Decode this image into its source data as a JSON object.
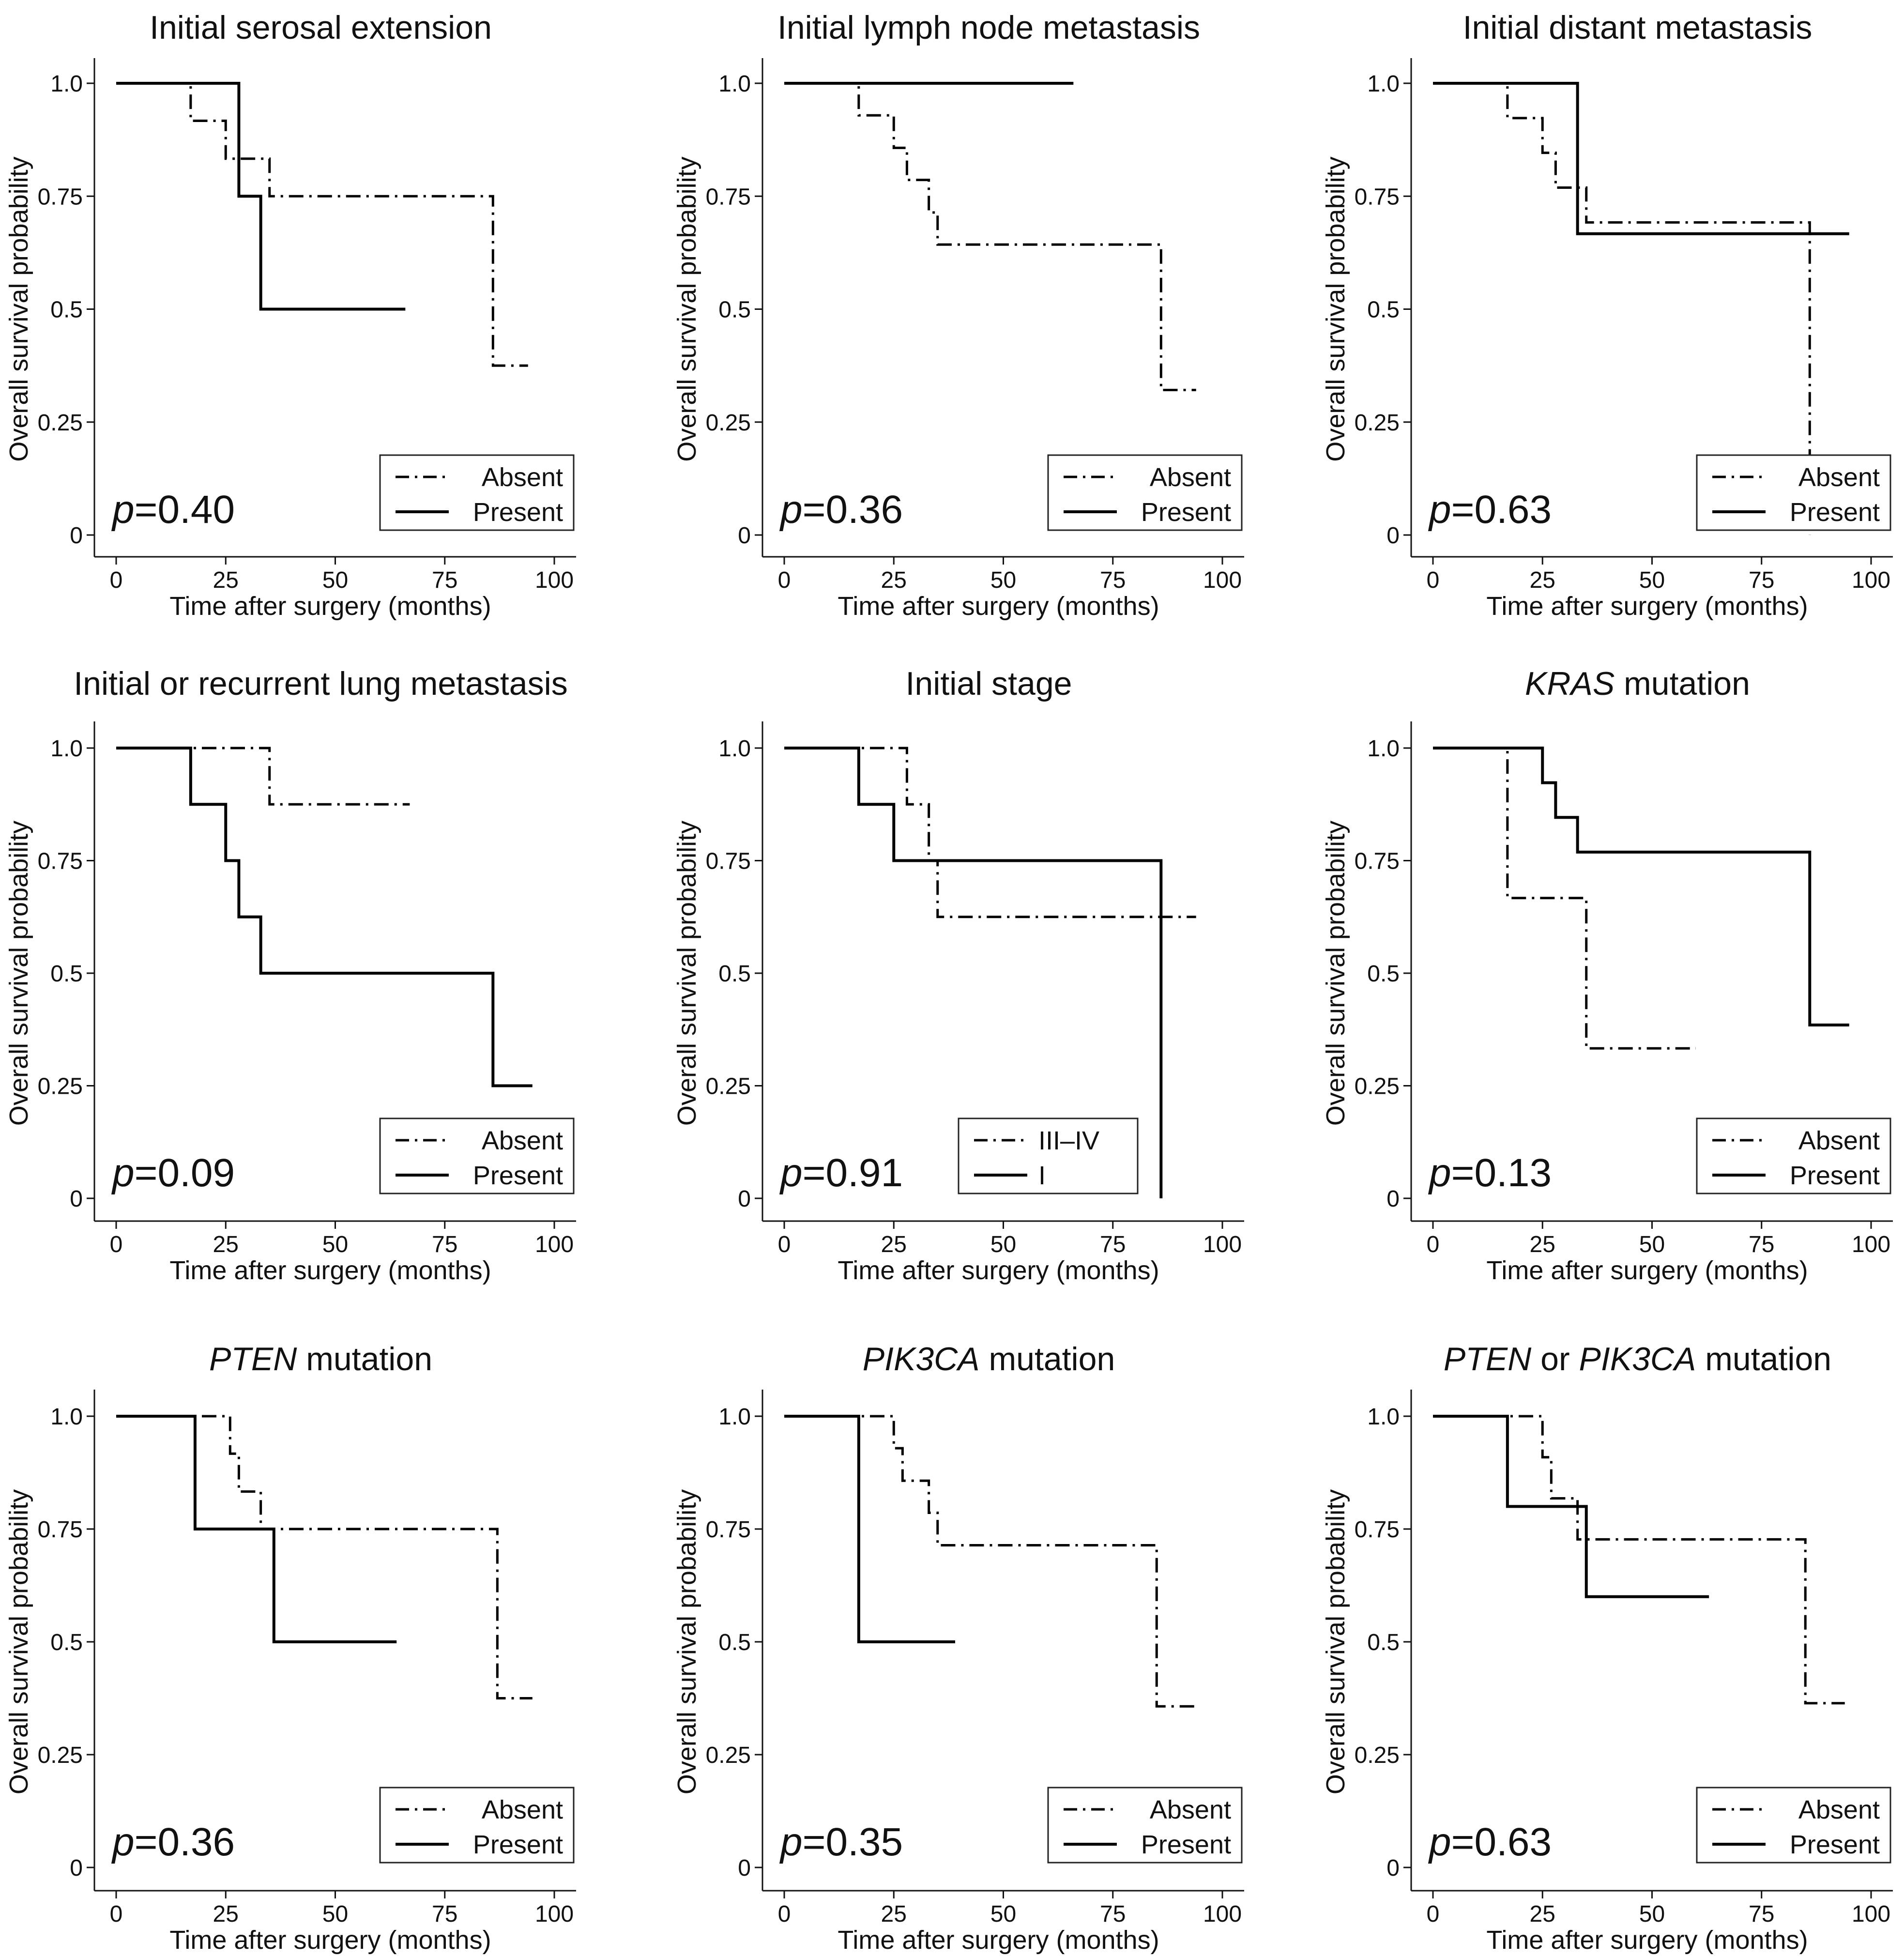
{
  "figure": {
    "x_axis_label": "Time after surgery (months)",
    "y_axis_label": "Overall survival probability"
  },
  "chart_data": [
    {
      "type": "line",
      "title_parts": [
        {
          "text": "Initial serosal extension",
          "italic": false
        }
      ],
      "xlabel": "Time after surgery (months)",
      "ylabel": "Overall survival probability",
      "xlim": [
        0,
        100
      ],
      "ylim": [
        0,
        1
      ],
      "xticks": [
        0,
        25,
        50,
        75,
        100
      ],
      "yticks": [
        0,
        0.25,
        0.5,
        0.75,
        1.0
      ],
      "ytick_labels": [
        "0",
        "0.25",
        "0.5",
        "0.75",
        "1.0"
      ],
      "p_label": "p",
      "p_value": "=0.40",
      "legend_position": "bottom-right",
      "series": [
        {
          "name": "Absent",
          "style": "dashdot",
          "x": [
            0,
            17,
            25,
            35,
            86,
            94
          ],
          "y": [
            1.0,
            0.917,
            0.833,
            0.75,
            0.375,
            0.375
          ]
        },
        {
          "name": "Present",
          "style": "solid",
          "x": [
            0,
            28,
            33,
            66
          ],
          "y": [
            1.0,
            0.75,
            0.5,
            0.5
          ]
        }
      ]
    },
    {
      "type": "line",
      "title_parts": [
        {
          "text": "Initial lymph node metastasis",
          "italic": false
        }
      ],
      "xlabel": "Time after surgery (months)",
      "ylabel": "Overall survival probability",
      "xlim": [
        0,
        100
      ],
      "ylim": [
        0,
        1
      ],
      "xticks": [
        0,
        25,
        50,
        75,
        100
      ],
      "yticks": [
        0,
        0.25,
        0.5,
        0.75,
        1.0
      ],
      "ytick_labels": [
        "0",
        "0.25",
        "0.5",
        "0.75",
        "1.0"
      ],
      "p_label": "p",
      "p_value": "=0.36",
      "legend_position": "bottom-right",
      "series": [
        {
          "name": "Absent",
          "style": "dashdot",
          "x": [
            0,
            17,
            25,
            28,
            33,
            35,
            86,
            94
          ],
          "y": [
            1.0,
            0.929,
            0.857,
            0.786,
            0.714,
            0.643,
            0.321,
            0.321
          ]
        },
        {
          "name": "Present",
          "style": "solid",
          "x": [
            0,
            66
          ],
          "y": [
            1.0,
            1.0
          ]
        }
      ]
    },
    {
      "type": "line",
      "title_parts": [
        {
          "text": "Initial distant metastasis",
          "italic": false
        }
      ],
      "xlabel": "Time after surgery (months)",
      "ylabel": "Overall survival probability",
      "xlim": [
        0,
        100
      ],
      "ylim": [
        0,
        1
      ],
      "xticks": [
        0,
        25,
        50,
        75,
        100
      ],
      "yticks": [
        0,
        0.25,
        0.5,
        0.75,
        1.0
      ],
      "ytick_labels": [
        "0",
        "0.25",
        "0.5",
        "0.75",
        "1.0"
      ],
      "p_label": "p",
      "p_value": "=0.63",
      "legend_position": "bottom-right",
      "series": [
        {
          "name": "Absent",
          "style": "dashdot",
          "x": [
            0,
            17,
            25,
            28,
            35,
            86,
            86
          ],
          "y": [
            1.0,
            0.923,
            0.846,
            0.769,
            0.692,
            0.0,
            0.0
          ]
        },
        {
          "name": "Present",
          "style": "solid",
          "x": [
            0,
            33,
            95
          ],
          "y": [
            1.0,
            0.667,
            0.667
          ]
        }
      ]
    },
    {
      "type": "line",
      "title_parts": [
        {
          "text": "Initial or recurrent lung metastasis",
          "italic": false
        }
      ],
      "xlabel": "Time after surgery (months)",
      "ylabel": "Overall survival probability",
      "xlim": [
        0,
        100
      ],
      "ylim": [
        0,
        1
      ],
      "xticks": [
        0,
        25,
        50,
        75,
        100
      ],
      "yticks": [
        0,
        0.25,
        0.5,
        0.75,
        1.0
      ],
      "ytick_labels": [
        "0",
        "0.25",
        "0.5",
        "0.75",
        "1.0"
      ],
      "p_label": "p",
      "p_value": "=0.09",
      "legend_position": "bottom-right",
      "series": [
        {
          "name": "Absent",
          "style": "dashdot",
          "x": [
            0,
            35,
            67
          ],
          "y": [
            1.0,
            0.875,
            0.875
          ]
        },
        {
          "name": "Present",
          "style": "solid",
          "x": [
            0,
            17,
            25,
            28,
            33,
            86,
            95
          ],
          "y": [
            1.0,
            0.875,
            0.75,
            0.625,
            0.5,
            0.25,
            0.25
          ]
        }
      ]
    },
    {
      "type": "line",
      "title_parts": [
        {
          "text": "Initial stage",
          "italic": false
        }
      ],
      "xlabel": "Time after surgery (months)",
      "ylabel": "Overall survival probability",
      "xlim": [
        0,
        100
      ],
      "ylim": [
        0,
        1
      ],
      "xticks": [
        0,
        25,
        50,
        75,
        100
      ],
      "yticks": [
        0,
        0.25,
        0.5,
        0.75,
        1.0
      ],
      "ytick_labels": [
        "0",
        "0.25",
        "0.5",
        "0.75",
        "1.0"
      ],
      "p_label": "p",
      "p_value": "=0.91",
      "legend_position": "bottom-center",
      "series": [
        {
          "name": "III–IV",
          "style": "dashdot",
          "x": [
            0,
            28,
            33,
            35,
            94
          ],
          "y": [
            1.0,
            0.875,
            0.75,
            0.625,
            0.625
          ]
        },
        {
          "name": "I",
          "style": "solid",
          "x": [
            0,
            17,
            25,
            86,
            86
          ],
          "y": [
            1.0,
            0.875,
            0.75,
            0.0,
            0.0
          ]
        }
      ]
    },
    {
      "type": "line",
      "title_parts": [
        {
          "text": "KRAS",
          "italic": true
        },
        {
          "text": " mutation",
          "italic": false
        }
      ],
      "xlabel": "Time after surgery (months)",
      "ylabel": "Overall survival probability",
      "xlim": [
        0,
        100
      ],
      "ylim": [
        0,
        1
      ],
      "xticks": [
        0,
        25,
        50,
        75,
        100
      ],
      "yticks": [
        0,
        0.25,
        0.5,
        0.75,
        1.0
      ],
      "ytick_labels": [
        "0",
        "0.25",
        "0.5",
        "0.75",
        "1.0"
      ],
      "p_label": "p",
      "p_value": "=0.13",
      "legend_position": "bottom-right",
      "series": [
        {
          "name": "Absent",
          "style": "dashdot",
          "x": [
            0,
            17,
            35,
            60
          ],
          "y": [
            1.0,
            0.667,
            0.333,
            0.333
          ]
        },
        {
          "name": "Present",
          "style": "solid",
          "x": [
            0,
            25,
            28,
            33,
            86,
            95
          ],
          "y": [
            1.0,
            0.923,
            0.846,
            0.769,
            0.385,
            0.385
          ]
        }
      ]
    },
    {
      "type": "line",
      "title_parts": [
        {
          "text": "PTEN",
          "italic": true
        },
        {
          "text": " mutation",
          "italic": false
        }
      ],
      "xlabel": "Time after surgery (months)",
      "ylabel": "Overall survival probability",
      "xlim": [
        0,
        100
      ],
      "ylim": [
        0,
        1
      ],
      "xticks": [
        0,
        25,
        50,
        75,
        100
      ],
      "yticks": [
        0,
        0.25,
        0.5,
        0.75,
        1.0
      ],
      "ytick_labels": [
        "0",
        "0.25",
        "0.5",
        "0.75",
        "1.0"
      ],
      "p_label": "p",
      "p_value": "=0.36",
      "legend_position": "bottom-right",
      "series": [
        {
          "name": "Absent",
          "style": "dashdot",
          "x": [
            0,
            26,
            28,
            33,
            87,
            95
          ],
          "y": [
            1.0,
            0.917,
            0.833,
            0.75,
            0.375,
            0.375
          ]
        },
        {
          "name": "Present",
          "style": "solid",
          "x": [
            0,
            18,
            36,
            64
          ],
          "y": [
            1.0,
            0.75,
            0.5,
            0.5
          ]
        }
      ]
    },
    {
      "type": "line",
      "title_parts": [
        {
          "text": "PIK3CA",
          "italic": true
        },
        {
          "text": " mutation",
          "italic": false
        }
      ],
      "xlabel": "Time after surgery (months)",
      "ylabel": "Overall survival probability",
      "xlim": [
        0,
        100
      ],
      "ylim": [
        0,
        1
      ],
      "xticks": [
        0,
        25,
        50,
        75,
        100
      ],
      "yticks": [
        0,
        0.25,
        0.5,
        0.75,
        1.0
      ],
      "ytick_labels": [
        "0",
        "0.25",
        "0.5",
        "0.75",
        "1.0"
      ],
      "p_label": "p",
      "p_value": "=0.35",
      "legend_position": "bottom-right",
      "series": [
        {
          "name": "Absent",
          "style": "dashdot",
          "x": [
            0,
            25,
            27,
            33,
            35,
            85,
            94
          ],
          "y": [
            1.0,
            0.929,
            0.857,
            0.786,
            0.714,
            0.357,
            0.357
          ]
        },
        {
          "name": "Present",
          "style": "solid",
          "x": [
            0,
            17,
            39
          ],
          "y": [
            1.0,
            0.5,
            0.5
          ]
        }
      ]
    },
    {
      "type": "line",
      "title_parts": [
        {
          "text": "PTEN",
          "italic": true
        },
        {
          "text": " or ",
          "italic": false
        },
        {
          "text": "PIK3CA",
          "italic": true
        },
        {
          "text": " mutation",
          "italic": false
        }
      ],
      "xlabel": "Time after surgery (months)",
      "ylabel": "Overall survival probability",
      "xlim": [
        0,
        100
      ],
      "ylim": [
        0,
        1
      ],
      "xticks": [
        0,
        25,
        50,
        75,
        100
      ],
      "yticks": [
        0,
        0.25,
        0.5,
        0.75,
        1.0
      ],
      "ytick_labels": [
        "0",
        "0.25",
        "0.5",
        "0.75",
        "1.0"
      ],
      "p_label": "p",
      "p_value": "=0.63",
      "legend_position": "bottom-right",
      "series": [
        {
          "name": "Absent",
          "style": "dashdot",
          "x": [
            0,
            25,
            27,
            28,
            33,
            85,
            94
          ],
          "y": [
            1.0,
            0.909,
            0.818,
            0.818,
            0.727,
            0.364,
            0.364
          ]
        },
        {
          "name": "Present",
          "style": "solid",
          "x": [
            0,
            17,
            35,
            63
          ],
          "y": [
            1.0,
            0.8,
            0.6,
            0.6
          ]
        }
      ]
    }
  ]
}
